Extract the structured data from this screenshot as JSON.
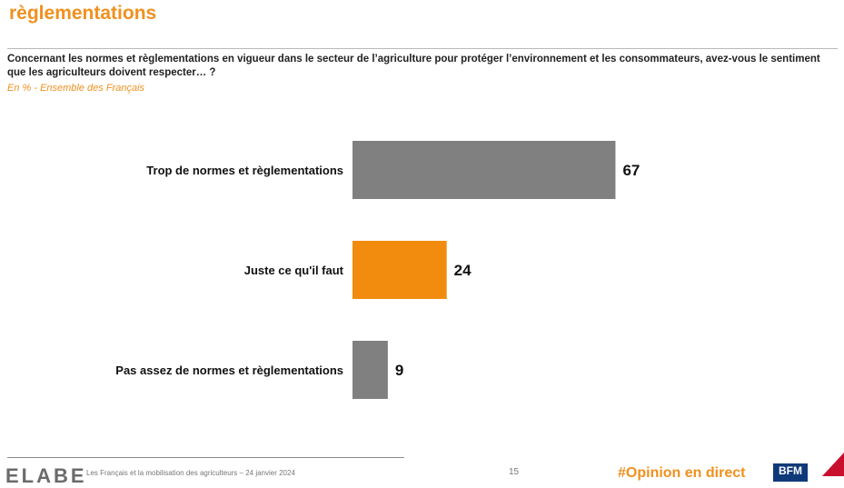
{
  "header": {
    "title": "règlementations",
    "question": "Concernant les normes et règlementations en vigueur dans le secteur de l’agriculture pour protéger l’environnement et les consommateurs, avez-vous le sentiment que les agriculteurs doivent respecter… ?",
    "subtitle": "En % - Ensemble des Français"
  },
  "chart_data": {
    "type": "bar",
    "orientation": "horizontal",
    "categories": [
      "Trop de normes et règlementations",
      "Juste ce qu'il faut",
      "Pas assez de normes et règlementations"
    ],
    "values": [
      67,
      24,
      9
    ],
    "colors": [
      "#808080",
      "#f28c0f",
      "#808080"
    ],
    "xlim": [
      0,
      100
    ],
    "grid": false
  },
  "footer": {
    "logo": "ELABE",
    "text": "Les Français et la mobilisation des agriculteurs – 24 janvier 2024",
    "page": "15",
    "tagline": "#Opinion en direct",
    "partner_logo": "BFM"
  }
}
